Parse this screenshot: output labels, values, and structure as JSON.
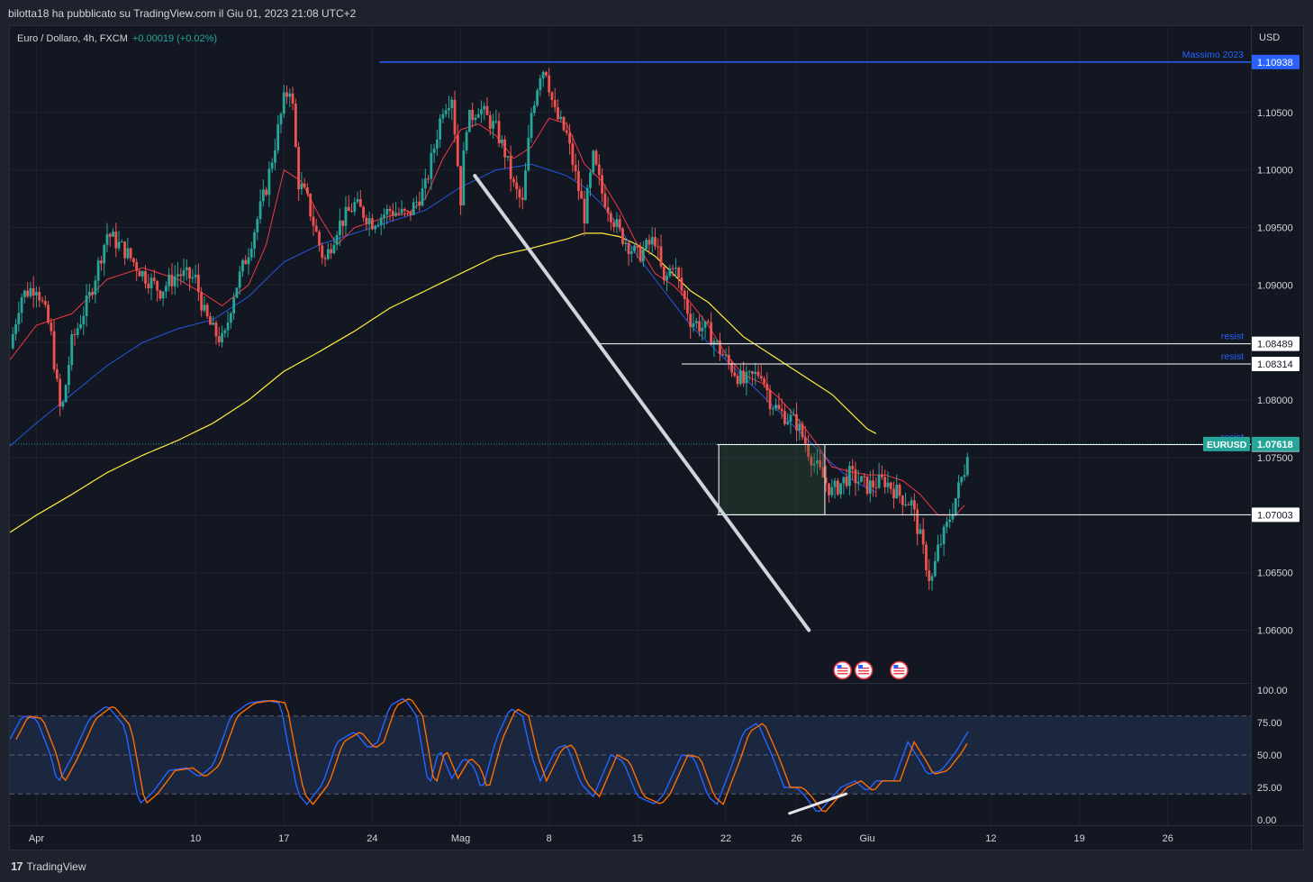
{
  "header": {
    "publish_text": "bilotta18 ha pubblicato su TradingView.com il Giu 01, 2023 21:08 UTC+2",
    "symbol_text": "Euro / Dollaro, 4h, FXCM",
    "change_text": "+0.00019 (+0.02%)"
  },
  "footer": {
    "brand": "TradingView",
    "logo": "17"
  },
  "colors": {
    "bg": "#131722",
    "up": "#26a69a",
    "down": "#ef5350",
    "ema_fast": "#f23645",
    "ema_mid": "#2962ff",
    "ema_slow": "#ffeb3b",
    "stoch_k": "#2962ff",
    "stoch_d": "#ff6d00",
    "grid": "#1f2330",
    "text": "#d1d4dc"
  },
  "chart_data": {
    "type": "candlestick",
    "symbol": "EURUSD",
    "currency": "USD",
    "y_ticks": [
      "1.10500",
      "1.10000",
      "1.09500",
      "1.09000",
      "1.08500",
      "1.08000",
      "1.07500",
      "1.07000",
      "1.06500",
      "1.06000"
    ],
    "x_ticks": [
      {
        "label": "Apr",
        "x": 0
      },
      {
        "label": "10",
        "x": 9
      },
      {
        "label": "17",
        "x": 14
      },
      {
        "label": "24",
        "x": 19
      },
      {
        "label": "Mag",
        "x": 24
      },
      {
        "label": "8",
        "x": 29
      },
      {
        "label": "15",
        "x": 34
      },
      {
        "label": "22",
        "x": 39
      },
      {
        "label": "26",
        "x": 43
      },
      {
        "label": "Giu",
        "x": 47
      },
      {
        "label": "12",
        "x": 54
      },
      {
        "label": "19",
        "x": 59
      },
      {
        "label": "26",
        "x": 64
      }
    ],
    "ylim": [
      1.0555,
      1.1125
    ],
    "xlim": [
      -1.5,
      68.7
    ],
    "close_anchors": [
      [
        -1.5,
        1.0845
      ],
      [
        -0.9,
        1.089
      ],
      [
        0,
        1.09
      ],
      [
        0.4,
        1.088
      ],
      [
        0.8,
        1.086
      ],
      [
        1.1,
        1.082
      ],
      [
        1.4,
        1.0785
      ],
      [
        2,
        1.085
      ],
      [
        3,
        1.089
      ],
      [
        4,
        1.0945
      ],
      [
        5,
        1.093
      ],
      [
        6,
        1.091
      ],
      [
        7,
        1.0895
      ],
      [
        8,
        1.091
      ],
      [
        9,
        1.0905
      ],
      [
        9.5,
        1.0875
      ],
      [
        10,
        1.086
      ],
      [
        10.6,
        1.085
      ],
      [
        11.1,
        1.089
      ],
      [
        12,
        1.093
      ],
      [
        13,
        1.0985
      ],
      [
        14,
        1.106
      ],
      [
        14.4,
        1.1075
      ],
      [
        14.8,
        1.099
      ],
      [
        15.3,
        1.0975
      ],
      [
        16,
        1.0935
      ],
      [
        16.3,
        1.092
      ],
      [
        17,
        1.095
      ],
      [
        18,
        1.097
      ],
      [
        19,
        1.0955
      ],
      [
        20,
        1.0965
      ],
      [
        21,
        1.096
      ],
      [
        22,
        1.0985
      ],
      [
        23,
        1.1055
      ],
      [
        23.5,
        1.1065
      ],
      [
        24,
        1.0975
      ],
      [
        24.3,
        1.104
      ],
      [
        25,
        1.1055
      ],
      [
        26,
        1.1035
      ],
      [
        26.5,
        1.1015
      ],
      [
        27,
        1.0985
      ],
      [
        27.5,
        1.097
      ],
      [
        28,
        1.105
      ],
      [
        28.5,
        1.1085
      ],
      [
        28.8,
        1.109
      ],
      [
        29.3,
        1.105
      ],
      [
        30,
        1.103
      ],
      [
        31,
        1.096
      ],
      [
        31.5,
        1.101
      ],
      [
        32,
        1.098
      ],
      [
        33,
        1.0945
      ],
      [
        34,
        1.0925
      ],
      [
        35,
        1.094
      ],
      [
        35.5,
        1.09
      ],
      [
        36,
        1.092
      ],
      [
        37,
        1.087
      ],
      [
        38,
        1.086
      ],
      [
        39,
        1.0835
      ],
      [
        40,
        1.0815
      ],
      [
        41,
        1.0825
      ],
      [
        41.5,
        1.08
      ],
      [
        42,
        1.079
      ],
      [
        43,
        1.078
      ],
      [
        44,
        1.0745
      ],
      [
        45,
        1.072
      ],
      [
        46,
        1.0735
      ],
      [
        47,
        1.0725
      ],
      [
        48,
        1.073
      ],
      [
        49,
        1.0715
      ],
      [
        49.5,
        1.071
      ],
      [
        50,
        1.068
      ],
      [
        50.3,
        1.066
      ],
      [
        50.6,
        1.064
      ],
      [
        51,
        1.067
      ],
      [
        51.5,
        1.069
      ],
      [
        52,
        1.0715
      ],
      [
        52.5,
        1.074
      ],
      [
        52.7,
        1.0762
      ]
    ],
    "ema20_anchors": [
      [
        -1.5,
        1.0835
      ],
      [
        0,
        1.0865
      ],
      [
        2,
        1.0875
      ],
      [
        4,
        1.0905
      ],
      [
        6,
        1.0915
      ],
      [
        8,
        1.0905
      ],
      [
        9.5,
        1.0892
      ],
      [
        10.5,
        1.0882
      ],
      [
        12,
        1.09
      ],
      [
        13,
        1.0935
      ],
      [
        14,
        1.1
      ],
      [
        15,
        1.099
      ],
      [
        16,
        1.096
      ],
      [
        17,
        1.0935
      ],
      [
        18,
        1.095
      ],
      [
        19,
        1.0955
      ],
      [
        20,
        1.096
      ],
      [
        21,
        1.0962
      ],
      [
        22,
        1.0975
      ],
      [
        23,
        1.101
      ],
      [
        24,
        1.1035
      ],
      [
        25,
        1.104
      ],
      [
        26,
        1.103
      ],
      [
        27,
        1.101
      ],
      [
        28,
        1.102
      ],
      [
        29,
        1.1045
      ],
      [
        30,
        1.104
      ],
      [
        31,
        1.1005
      ],
      [
        32,
        1.099
      ],
      [
        33,
        1.0965
      ],
      [
        34,
        1.0935
      ],
      [
        35,
        1.091
      ],
      [
        36,
        1.09
      ],
      [
        37,
        1.0885
      ],
      [
        38,
        1.0865
      ],
      [
        39,
        1.084
      ],
      [
        40,
        1.0822
      ],
      [
        41,
        1.0815
      ],
      [
        42,
        1.0802
      ],
      [
        43,
        1.0785
      ],
      [
        44,
        1.0765
      ],
      [
        45,
        1.0742
      ],
      [
        46,
        1.0738
      ],
      [
        47,
        1.0735
      ],
      [
        48,
        1.0735
      ],
      [
        49,
        1.073
      ],
      [
        50,
        1.0718
      ],
      [
        51,
        1.07
      ],
      [
        52,
        1.07
      ],
      [
        52.7,
        1.0712
      ]
    ],
    "ema50_anchors": [
      [
        -1.5,
        1.076
      ],
      [
        0,
        1.078
      ],
      [
        2,
        1.0805
      ],
      [
        4,
        1.083
      ],
      [
        6,
        1.085
      ],
      [
        8,
        1.0862
      ],
      [
        10,
        1.087
      ],
      [
        12,
        1.089
      ],
      [
        14,
        1.092
      ],
      [
        16,
        1.0935
      ],
      [
        18,
        1.0945
      ],
      [
        20,
        1.0955
      ],
      [
        22,
        1.0965
      ],
      [
        24,
        1.0985
      ],
      [
        26,
        1.1
      ],
      [
        28,
        1.1005
      ],
      [
        29,
        1.1
      ],
      [
        30,
        1.0995
      ],
      [
        31,
        1.0985
      ],
      [
        32,
        1.097
      ],
      [
        33,
        1.095
      ],
      [
        34,
        1.0925
      ],
      [
        35,
        1.0905
      ],
      [
        36,
        1.0885
      ],
      [
        37,
        1.0865
      ],
      [
        38,
        1.085
      ],
      [
        39,
        1.0835
      ],
      [
        40,
        1.082
      ],
      [
        41,
        1.0805
      ],
      [
        42,
        1.079
      ],
      [
        43,
        1.0775
      ],
      [
        44,
        1.076
      ],
      [
        45,
        1.0745
      ],
      [
        46,
        1.0732
      ],
      [
        46.8,
        1.0725
      ],
      [
        47.5,
        1.072
      ]
    ],
    "ema200_anchors": [
      [
        -1.5,
        1.0685
      ],
      [
        0,
        1.07
      ],
      [
        2,
        1.0718
      ],
      [
        4,
        1.0737
      ],
      [
        6,
        1.0752
      ],
      [
        8,
        1.0765
      ],
      [
        10,
        1.078
      ],
      [
        12,
        1.08
      ],
      [
        14,
        1.0825
      ],
      [
        16,
        1.0842
      ],
      [
        18,
        1.086
      ],
      [
        20,
        1.088
      ],
      [
        22,
        1.0895
      ],
      [
        24,
        1.091
      ],
      [
        26,
        1.0925
      ],
      [
        28,
        1.0932
      ],
      [
        30,
        1.094
      ],
      [
        31,
        1.0945
      ],
      [
        32,
        1.0945
      ],
      [
        33,
        1.0942
      ],
      [
        34,
        1.0935
      ],
      [
        35,
        1.0925
      ],
      [
        36,
        1.091
      ],
      [
        37,
        1.0895
      ],
      [
        38,
        1.0885
      ],
      [
        39,
        1.087
      ],
      [
        40,
        1.0855
      ],
      [
        41,
        1.0845
      ],
      [
        42,
        1.0835
      ],
      [
        43,
        1.0825
      ],
      [
        44,
        1.0815
      ],
      [
        45,
        1.0805
      ],
      [
        46,
        1.079
      ],
      [
        47,
        1.0775
      ],
      [
        47.6,
        1.077
      ]
    ],
    "horizontal_levels": [
      {
        "name": "massimo-2023",
        "price": 1.10938,
        "x_start": 19.4,
        "x_end": 68.7,
        "color": "#2962ff",
        "label": "Massimo 2023",
        "price_label": "1.10938"
      },
      {
        "name": "resist-1",
        "price": 1.08489,
        "x_start": 31.7,
        "x_end": 68.7,
        "color": "#ffffff",
        "label": "resist",
        "price_label": "1.08489"
      },
      {
        "name": "resist-2",
        "price": 1.08314,
        "x_start": 36.5,
        "x_end": 68.7,
        "color": "#ffffff",
        "label": "resist",
        "price_label": "1.08314"
      },
      {
        "name": "resist-3",
        "price": 1.07613,
        "x_start": 38.5,
        "x_end": 68.7,
        "color": "#ffffff",
        "label": "resist",
        "price_label": "1.07613"
      },
      {
        "name": "support",
        "price": 1.07003,
        "x_start": 38.5,
        "x_end": 68.7,
        "color": "#ffffff",
        "label": "",
        "price_label": "1.07003"
      }
    ],
    "current_price": {
      "price": 1.07618,
      "label": "1.07618",
      "tag": "EURUSD"
    },
    "trendline": {
      "x1": 24.8,
      "y1": 1.0995,
      "x2": 43.7,
      "y2": 1.06
    },
    "range_box": {
      "x1": 38.6,
      "y1": 1.07613,
      "x2": 44.6,
      "y2": 1.07003
    },
    "event_icons": [
      45.6,
      46.8,
      48.8
    ],
    "stoch": {
      "y_ticks": [
        "100.00",
        "75.00",
        "50.00",
        "25.00",
        "0.00"
      ],
      "upper": 80,
      "lower": 20,
      "k_anchors": [
        [
          -1.5,
          62
        ],
        [
          -0.8,
          80
        ],
        [
          0,
          78
        ],
        [
          0.8,
          50
        ],
        [
          1.2,
          28
        ],
        [
          2,
          48
        ],
        [
          3,
          78
        ],
        [
          4,
          88
        ],
        [
          5,
          72
        ],
        [
          5.8,
          12
        ],
        [
          6.5,
          20
        ],
        [
          7.5,
          38
        ],
        [
          8.5,
          40
        ],
        [
          9.2,
          33
        ],
        [
          10,
          42
        ],
        [
          11,
          80
        ],
        [
          12,
          90
        ],
        [
          13,
          92
        ],
        [
          13.8,
          90
        ],
        [
          14.2,
          60
        ],
        [
          14.8,
          20
        ],
        [
          15.3,
          12
        ],
        [
          16.2,
          28
        ],
        [
          17,
          60
        ],
        [
          18,
          68
        ],
        [
          18.8,
          55
        ],
        [
          19.3,
          60
        ],
        [
          20,
          88
        ],
        [
          20.8,
          94
        ],
        [
          21.5,
          80
        ],
        [
          22.2,
          25
        ],
        [
          22.8,
          55
        ],
        [
          23.5,
          32
        ],
        [
          24.2,
          48
        ],
        [
          24.8,
          40
        ],
        [
          25.2,
          22
        ],
        [
          26,
          62
        ],
        [
          26.8,
          86
        ],
        [
          27.5,
          80
        ],
        [
          28,
          50
        ],
        [
          28.5,
          30
        ],
        [
          29.4,
          55
        ],
        [
          30,
          58
        ],
        [
          30.8,
          28
        ],
        [
          31.5,
          18
        ],
        [
          32.5,
          50
        ],
        [
          33.2,
          45
        ],
        [
          34,
          18
        ],
        [
          35,
          12
        ],
        [
          35.5,
          20
        ],
        [
          36.5,
          50
        ],
        [
          37.2,
          48
        ],
        [
          38,
          18
        ],
        [
          38.5,
          12
        ],
        [
          39.5,
          48
        ],
        [
          40,
          68
        ],
        [
          40.8,
          75
        ],
        [
          41.6,
          50
        ],
        [
          42.3,
          25
        ],
        [
          43,
          25
        ],
        [
          43.5,
          18
        ],
        [
          44.2,
          5
        ],
        [
          45.5,
          25
        ],
        [
          46.3,
          30
        ],
        [
          47,
          22
        ],
        [
          47.5,
          30
        ],
        [
          48.5,
          30
        ],
        [
          49.3,
          60
        ],
        [
          50,
          45
        ],
        [
          50.4,
          35
        ],
        [
          51.2,
          38
        ],
        [
          52,
          52
        ],
        [
          52.7,
          68
        ]
      ],
      "d_shift": 0.35,
      "divergence": {
        "x1": 42.6,
        "y1": 5,
        "x2": 45.8,
        "y2": 20
      }
    }
  }
}
